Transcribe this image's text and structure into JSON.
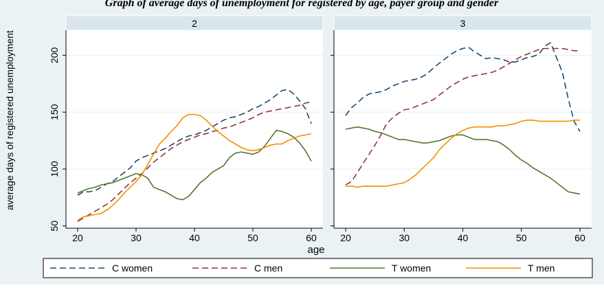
{
  "title": "Graph of average days of unemployment for registered by age, payer group and gender",
  "colors": {
    "outer_bg": "#eaf2f3",
    "plot_bg": "#ffffff",
    "strip_bg": "#d9e6eb",
    "axis": "#000000",
    "grid": "#e7edf0"
  },
  "chart_data": {
    "type": "line",
    "xlabel": "age",
    "ylabel": "average days of registered unemployment",
    "xlim": [
      18,
      62
    ],
    "ylim": [
      48,
      222
    ],
    "xticks": [
      20,
      30,
      40,
      50,
      60
    ],
    "yticks": [
      50,
      100,
      150,
      200
    ],
    "legend": {
      "position": "bottom",
      "entries": [
        "C women",
        "C men",
        "T women",
        "T men"
      ]
    },
    "panels": [
      {
        "label": "2",
        "series": [
          {
            "name": "C women",
            "color": "#1a476f",
            "dash": "dashed",
            "x": [
              20,
              21,
              22,
              23,
              24,
              25,
              26,
              27,
              28,
              29,
              30,
              31,
              32,
              33,
              34,
              35,
              36,
              37,
              38,
              39,
              40,
              41,
              42,
              43,
              44,
              45,
              46,
              47,
              48,
              49,
              50,
              51,
              52,
              53,
              54,
              55,
              56,
              57,
              58,
              59,
              60
            ],
            "y": [
              77,
              80,
              80,
              81,
              84,
              87,
              89,
              93,
              97,
              101,
              107,
              110,
              112,
              114,
              116,
              118,
              121,
              124,
              127,
              129,
              130,
              132,
              134,
              137,
              140,
              143,
              145,
              146,
              148,
              150,
              153,
              155,
              158,
              161,
              165,
              169,
              170,
              166,
              160,
              153,
              140
            ]
          },
          {
            "name": "C men",
            "color": "#90353b",
            "dash": "dashed",
            "x": [
              20,
              21,
              22,
              23,
              24,
              25,
              26,
              27,
              28,
              29,
              30,
              31,
              32,
              33,
              34,
              35,
              36,
              37,
              38,
              39,
              40,
              41,
              42,
              43,
              44,
              45,
              46,
              47,
              48,
              49,
              50,
              51,
              52,
              53,
              54,
              55,
              56,
              57,
              58,
              59,
              60
            ],
            "y": [
              54,
              57,
              60,
              63,
              66,
              69,
              73,
              78,
              83,
              88,
              92,
              96,
              101,
              106,
              110,
              114,
              118,
              121,
              124,
              126,
              128,
              130,
              131,
              133,
              134,
              136,
              137,
              139,
              141,
              143,
              145,
              148,
              150,
              151,
              152,
              153,
              154,
              155,
              156,
              158,
              159
            ]
          },
          {
            "name": "T women",
            "color": "#55752f",
            "dash": "solid",
            "x": [
              20,
              21,
              22,
              23,
              24,
              25,
              26,
              27,
              28,
              29,
              30,
              31,
              32,
              33,
              34,
              35,
              36,
              37,
              38,
              39,
              40,
              41,
              42,
              43,
              44,
              45,
              46,
              47,
              48,
              49,
              50,
              51,
              52,
              53,
              54,
              55,
              56,
              57,
              58,
              59,
              60
            ],
            "y": [
              79,
              81,
              83,
              84,
              86,
              87,
              88,
              90,
              92,
              94,
              96,
              95,
              92,
              84,
              82,
              80,
              77,
              74,
              73,
              76,
              82,
              88,
              92,
              97,
              100,
              103,
              110,
              114,
              115,
              114,
              113,
              115,
              120,
              127,
              134,
              133,
              131,
              128,
              123,
              116,
              107
            ]
          },
          {
            "name": "T men",
            "color": "#f28e00",
            "dash": "solid",
            "x": [
              20,
              21,
              22,
              23,
              24,
              25,
              26,
              27,
              28,
              29,
              30,
              31,
              32,
              33,
              34,
              35,
              36,
              37,
              38,
              39,
              40,
              41,
              42,
              43,
              44,
              45,
              46,
              47,
              48,
              49,
              50,
              51,
              52,
              53,
              54,
              55,
              56,
              57,
              58,
              59,
              60
            ],
            "y": [
              55,
              58,
              59,
              60,
              61,
              64,
              68,
              73,
              79,
              84,
              89,
              95,
              104,
              113,
              122,
              127,
              133,
              138,
              145,
              148,
              148,
              147,
              143,
              138,
              133,
              129,
              125,
              122,
              119,
              117,
              116,
              117,
              119,
              121,
              122,
              122,
              125,
              127,
              129,
              130,
              131
            ]
          }
        ]
      },
      {
        "label": "3",
        "series": [
          {
            "name": "C women",
            "color": "#1a476f",
            "dash": "dashed",
            "x": [
              20,
              21,
              22,
              23,
              24,
              25,
              26,
              27,
              28,
              29,
              30,
              31,
              32,
              33,
              34,
              35,
              36,
              37,
              38,
              39,
              40,
              41,
              42,
              43,
              44,
              45,
              46,
              47,
              48,
              49,
              50,
              51,
              52,
              53,
              54,
              55,
              56,
              57,
              58,
              59,
              60
            ],
            "y": [
              147,
              154,
              158,
              163,
              166,
              167,
              168,
              170,
              173,
              175,
              177,
              178,
              179,
              181,
              184,
              189,
              193,
              197,
              201,
              204,
              206,
              207,
              203,
              200,
              197,
              198,
              197,
              196,
              194,
              194,
              196,
              198,
              199,
              201,
              208,
              211,
              198,
              185,
              162,
              142,
              133
            ]
          },
          {
            "name": "C men",
            "color": "#90353b",
            "dash": "dashed",
            "x": [
              20,
              21,
              22,
              23,
              24,
              25,
              26,
              27,
              28,
              29,
              30,
              31,
              32,
              33,
              34,
              35,
              36,
              37,
              38,
              39,
              40,
              41,
              42,
              43,
              44,
              45,
              46,
              47,
              48,
              49,
              50,
              51,
              52,
              53,
              54,
              55,
              56,
              57,
              58,
              59,
              60
            ],
            "y": [
              86,
              89,
              97,
              105,
              113,
              121,
              130,
              140,
              145,
              149,
              152,
              153,
              155,
              157,
              159,
              161,
              165,
              169,
              173,
              176,
              179,
              181,
              182,
              183,
              184,
              185,
              187,
              190,
              193,
              196,
              199,
              201,
              203,
              205,
              206,
              206,
              206,
              206,
              205,
              204,
              204
            ]
          },
          {
            "name": "T women",
            "color": "#55752f",
            "dash": "solid",
            "x": [
              20,
              21,
              22,
              23,
              24,
              25,
              26,
              27,
              28,
              29,
              30,
              31,
              32,
              33,
              34,
              35,
              36,
              37,
              38,
              39,
              40,
              41,
              42,
              43,
              44,
              45,
              46,
              47,
              48,
              49,
              50,
              51,
              52,
              53,
              54,
              55,
              56,
              57,
              58,
              59,
              60
            ],
            "y": [
              135,
              136,
              137,
              136,
              135,
              133,
              132,
              130,
              128,
              126,
              126,
              125,
              124,
              123,
              123,
              124,
              125,
              127,
              129,
              130,
              130,
              128,
              126,
              126,
              126,
              125,
              124,
              121,
              117,
              112,
              108,
              105,
              101,
              98,
              95,
              92,
              88,
              84,
              80,
              79,
              78
            ]
          },
          {
            "name": "T men",
            "color": "#f28e00",
            "dash": "solid",
            "x": [
              20,
              21,
              22,
              23,
              24,
              25,
              26,
              27,
              28,
              29,
              30,
              31,
              32,
              33,
              34,
              35,
              36,
              37,
              38,
              39,
              40,
              41,
              42,
              43,
              44,
              45,
              46,
              47,
              48,
              49,
              50,
              51,
              52,
              53,
              54,
              55,
              56,
              57,
              58,
              59,
              60
            ],
            "y": [
              85,
              85,
              84,
              85,
              85,
              85,
              85,
              85,
              86,
              87,
              88,
              91,
              95,
              100,
              105,
              110,
              117,
              122,
              127,
              131,
              134,
              136,
              137,
              137,
              137,
              137,
              138,
              138,
              139,
              140,
              142,
              143,
              143,
              142,
              142,
              142,
              142,
              142,
              142,
              143,
              143
            ]
          }
        ]
      }
    ]
  }
}
